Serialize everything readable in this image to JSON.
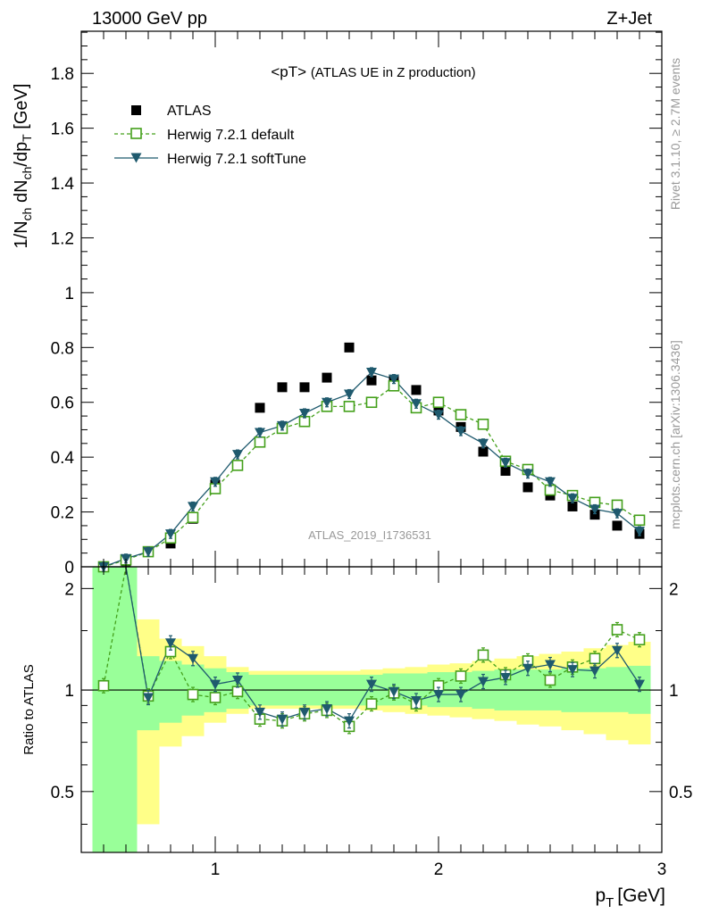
{
  "header": {
    "left": "13000 GeV pp",
    "right": "Z+Jet"
  },
  "side_labels": {
    "top": "Rivet 3.1.10, ≥ 2.7M events",
    "bottom": "mcplots.cern.ch [arXiv:1306.3436]"
  },
  "chart_data": [
    {
      "type": "scatter",
      "panel": "main",
      "title": "<pT>",
      "subtitle": "(ATLAS UE in Z production)",
      "watermark": "ATLAS_2019_I1736531",
      "xlabel": "p",
      "xlabel_sub": "T",
      "xlabel_unit": "[GeV]",
      "ylabel_parts": [
        "1/N",
        "ch",
        " dN",
        "ch",
        "/dp",
        "T",
        " [GeV]"
      ],
      "xlim": [
        0.4,
        3.0
      ],
      "ylim": [
        0,
        1.97
      ],
      "yticks": [
        0,
        0.2,
        0.4,
        0.6,
        0.8,
        1,
        1.2,
        1.4,
        1.6,
        1.8
      ],
      "ytick_labels": [
        "0",
        "0.2",
        "0.4",
        "0.6",
        "0.8",
        "1",
        "1.2",
        "1.4",
        "1.6",
        "1.8"
      ],
      "x": [
        0.5,
        0.6,
        0.7,
        0.8,
        0.9,
        1.0,
        1.1,
        1.2,
        1.3,
        1.4,
        1.5,
        1.6,
        1.7,
        1.8,
        1.9,
        2.0,
        2.1,
        2.2,
        2.3,
        2.4,
        2.5,
        2.6,
        2.7,
        2.8,
        2.9
      ],
      "series": [
        {
          "name": "ATLAS",
          "style": "data",
          "values": [
            0.0,
            0.02,
            0.055,
            0.085,
            0.175,
            0.3,
            0.37,
            0.58,
            0.655,
            0.655,
            0.69,
            0.8,
            0.68,
            0.68,
            0.645,
            0.57,
            0.51,
            0.42,
            0.35,
            0.29,
            0.26,
            0.22,
            0.19,
            0.15,
            0.12
          ]
        },
        {
          "name": "Herwig 7.2.1 default",
          "style": "default",
          "values": [
            0.0,
            0.025,
            0.055,
            0.105,
            0.18,
            0.285,
            0.37,
            0.455,
            0.505,
            0.53,
            0.585,
            0.585,
            0.6,
            0.66,
            0.58,
            0.6,
            0.555,
            0.52,
            0.385,
            0.355,
            0.28,
            0.26,
            0.235,
            0.225,
            0.17
          ]
        },
        {
          "name": "Herwig 7.2.1 softTune",
          "style": "soft",
          "values": [
            0.0,
            0.03,
            0.055,
            0.12,
            0.22,
            0.31,
            0.41,
            0.49,
            0.515,
            0.56,
            0.6,
            0.63,
            0.71,
            0.685,
            0.595,
            0.555,
            0.495,
            0.45,
            0.38,
            0.34,
            0.31,
            0.25,
            0.21,
            0.195,
            0.13
          ]
        }
      ]
    },
    {
      "type": "scatter",
      "panel": "ratio",
      "ylabel": "Ratio to ATLAS",
      "xlim": [
        0.4,
        3.0
      ],
      "ylim": [
        0.33,
        2.32
      ],
      "log_y": true,
      "reference": 1,
      "yticks": [
        0.5,
        1,
        2
      ],
      "ytick_labels": [
        "0.5",
        "1",
        "2"
      ],
      "xticks": [
        1,
        2,
        3
      ],
      "xtick_labels": [
        "1",
        "2",
        "3"
      ],
      "x": [
        0.5,
        0.6,
        0.7,
        0.8,
        0.9,
        1.0,
        1.1,
        1.2,
        1.3,
        1.4,
        1.5,
        1.6,
        1.7,
        1.8,
        1.9,
        2.0,
        2.1,
        2.2,
        2.3,
        2.4,
        2.5,
        2.6,
        2.7,
        2.8,
        2.9
      ],
      "band_inner": [
        [
          0.33,
          2.32
        ],
        [
          0.33,
          2.32
        ],
        [
          0.76,
          1.26
        ],
        [
          0.8,
          1.22
        ],
        [
          0.84,
          1.19
        ],
        [
          0.86,
          1.16
        ],
        [
          0.88,
          1.13
        ],
        [
          0.9,
          1.11
        ],
        [
          0.9,
          1.11
        ],
        [
          0.9,
          1.11
        ],
        [
          0.9,
          1.11
        ],
        [
          0.9,
          1.11
        ],
        [
          0.9,
          1.11
        ],
        [
          0.9,
          1.12
        ],
        [
          0.9,
          1.12
        ],
        [
          0.89,
          1.13
        ],
        [
          0.89,
          1.13
        ],
        [
          0.88,
          1.14
        ],
        [
          0.87,
          1.15
        ],
        [
          0.87,
          1.15
        ],
        [
          0.87,
          1.15
        ],
        [
          0.86,
          1.16
        ],
        [
          0.86,
          1.16
        ],
        [
          0.86,
          1.17
        ],
        [
          0.85,
          1.18
        ]
      ],
      "band_outer": [
        [
          0.33,
          2.32
        ],
        [
          0.33,
          2.32
        ],
        [
          0.4,
          1.62
        ],
        [
          0.68,
          1.42
        ],
        [
          0.73,
          1.35
        ],
        [
          0.8,
          1.26
        ],
        [
          0.85,
          1.17
        ],
        [
          0.88,
          1.14
        ],
        [
          0.88,
          1.14
        ],
        [
          0.88,
          1.14
        ],
        [
          0.88,
          1.14
        ],
        [
          0.88,
          1.14
        ],
        [
          0.87,
          1.15
        ],
        [
          0.86,
          1.16
        ],
        [
          0.85,
          1.17
        ],
        [
          0.84,
          1.19
        ],
        [
          0.83,
          1.2
        ],
        [
          0.82,
          1.22
        ],
        [
          0.81,
          1.24
        ],
        [
          0.79,
          1.26
        ],
        [
          0.78,
          1.28
        ],
        [
          0.76,
          1.3
        ],
        [
          0.74,
          1.33
        ],
        [
          0.71,
          1.36
        ],
        [
          0.69,
          1.39
        ]
      ],
      "series": [
        {
          "name": "Herwig 7.2.1 default",
          "style": "default",
          "values": [
            1.03,
            2.32,
            0.96,
            1.3,
            0.97,
            0.95,
            0.99,
            0.82,
            0.81,
            0.85,
            0.87,
            0.78,
            0.91,
            0.98,
            0.91,
            1.03,
            1.1,
            1.27,
            1.11,
            1.22,
            1.07,
            1.17,
            1.24,
            1.51,
            1.41
          ]
        },
        {
          "name": "Herwig 7.2.1 softTune",
          "style": "soft",
          "values": [
            2.32,
            2.32,
            0.95,
            1.38,
            1.24,
            1.04,
            1.07,
            0.86,
            0.82,
            0.86,
            0.88,
            0.81,
            1.04,
            0.99,
            0.93,
            0.97,
            0.97,
            1.06,
            1.09,
            1.16,
            1.19,
            1.15,
            1.14,
            1.31,
            1.04
          ]
        }
      ]
    }
  ],
  "colors": {
    "data": "#000000",
    "default": "#44a01b",
    "soft": "#1f5a6e",
    "band_inner": "#99ff99",
    "band_outer": "#ffff88",
    "label_grey": "#999999"
  }
}
